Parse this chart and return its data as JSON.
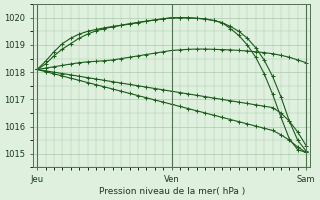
{
  "background_color": "#dff0df",
  "plot_bg_color": "#dff0df",
  "grid_color": "#aacaaa",
  "line_color_dark": "#1a5c1a",
  "line_color_mid": "#2a7a2a",
  "xlabel": "Pression niveau de la mer( hPa )",
  "ylim": [
    1014.5,
    1020.5
  ],
  "yticks": [
    1015,
    1016,
    1017,
    1018,
    1019,
    1020
  ],
  "xtick_labels": [
    "Jeu",
    "Ven",
    "Sam"
  ],
  "xtick_positions": [
    0,
    16,
    32
  ],
  "n_points": 33,
  "series": [
    [
      1018.1,
      1018.15,
      1018.2,
      1018.25,
      1018.3,
      1018.35,
      1018.38,
      1018.4,
      1018.42,
      1018.45,
      1018.5,
      1018.55,
      1018.6,
      1018.65,
      1018.7,
      1018.75,
      1018.8,
      1018.82,
      1018.84,
      1018.85,
      1018.85,
      1018.84,
      1018.83,
      1018.82,
      1018.8,
      1018.78,
      1018.75,
      1018.72,
      1018.68,
      1018.62,
      1018.55,
      1018.45,
      1018.35
    ],
    [
      1018.1,
      1018.3,
      1018.6,
      1018.85,
      1019.05,
      1019.25,
      1019.4,
      1019.52,
      1019.6,
      1019.67,
      1019.72,
      1019.77,
      1019.82,
      1019.87,
      1019.92,
      1019.96,
      1020.0,
      1020.0,
      1020.0,
      1019.98,
      1019.95,
      1019.9,
      1019.82,
      1019.68,
      1019.5,
      1019.25,
      1018.9,
      1018.45,
      1017.85,
      1017.1,
      1016.2,
      1015.5,
      1015.1
    ],
    [
      1018.1,
      1018.4,
      1018.75,
      1019.05,
      1019.25,
      1019.4,
      1019.5,
      1019.57,
      1019.63,
      1019.68,
      1019.73,
      1019.78,
      1019.83,
      1019.88,
      1019.92,
      1019.96,
      1020.0,
      1020.0,
      1020.0,
      1019.98,
      1019.96,
      1019.9,
      1019.82,
      1019.6,
      1019.35,
      1019.0,
      1018.55,
      1017.95,
      1017.2,
      1016.35,
      1015.55,
      1015.15,
      1015.05
    ],
    [
      1018.1,
      1018.05,
      1018.0,
      1017.95,
      1017.9,
      1017.85,
      1017.8,
      1017.75,
      1017.7,
      1017.65,
      1017.6,
      1017.55,
      1017.5,
      1017.45,
      1017.4,
      1017.35,
      1017.3,
      1017.25,
      1017.2,
      1017.15,
      1017.1,
      1017.05,
      1017.0,
      1016.95,
      1016.9,
      1016.85,
      1016.8,
      1016.75,
      1016.7,
      1016.5,
      1016.2,
      1015.8,
      1015.3
    ],
    [
      1018.1,
      1018.02,
      1017.94,
      1017.86,
      1017.78,
      1017.7,
      1017.62,
      1017.54,
      1017.46,
      1017.38,
      1017.3,
      1017.22,
      1017.14,
      1017.06,
      1016.98,
      1016.9,
      1016.82,
      1016.74,
      1016.66,
      1016.58,
      1016.5,
      1016.42,
      1016.34,
      1016.26,
      1016.18,
      1016.1,
      1016.02,
      1015.94,
      1015.86,
      1015.7,
      1015.5,
      1015.25,
      1015.05
    ]
  ]
}
